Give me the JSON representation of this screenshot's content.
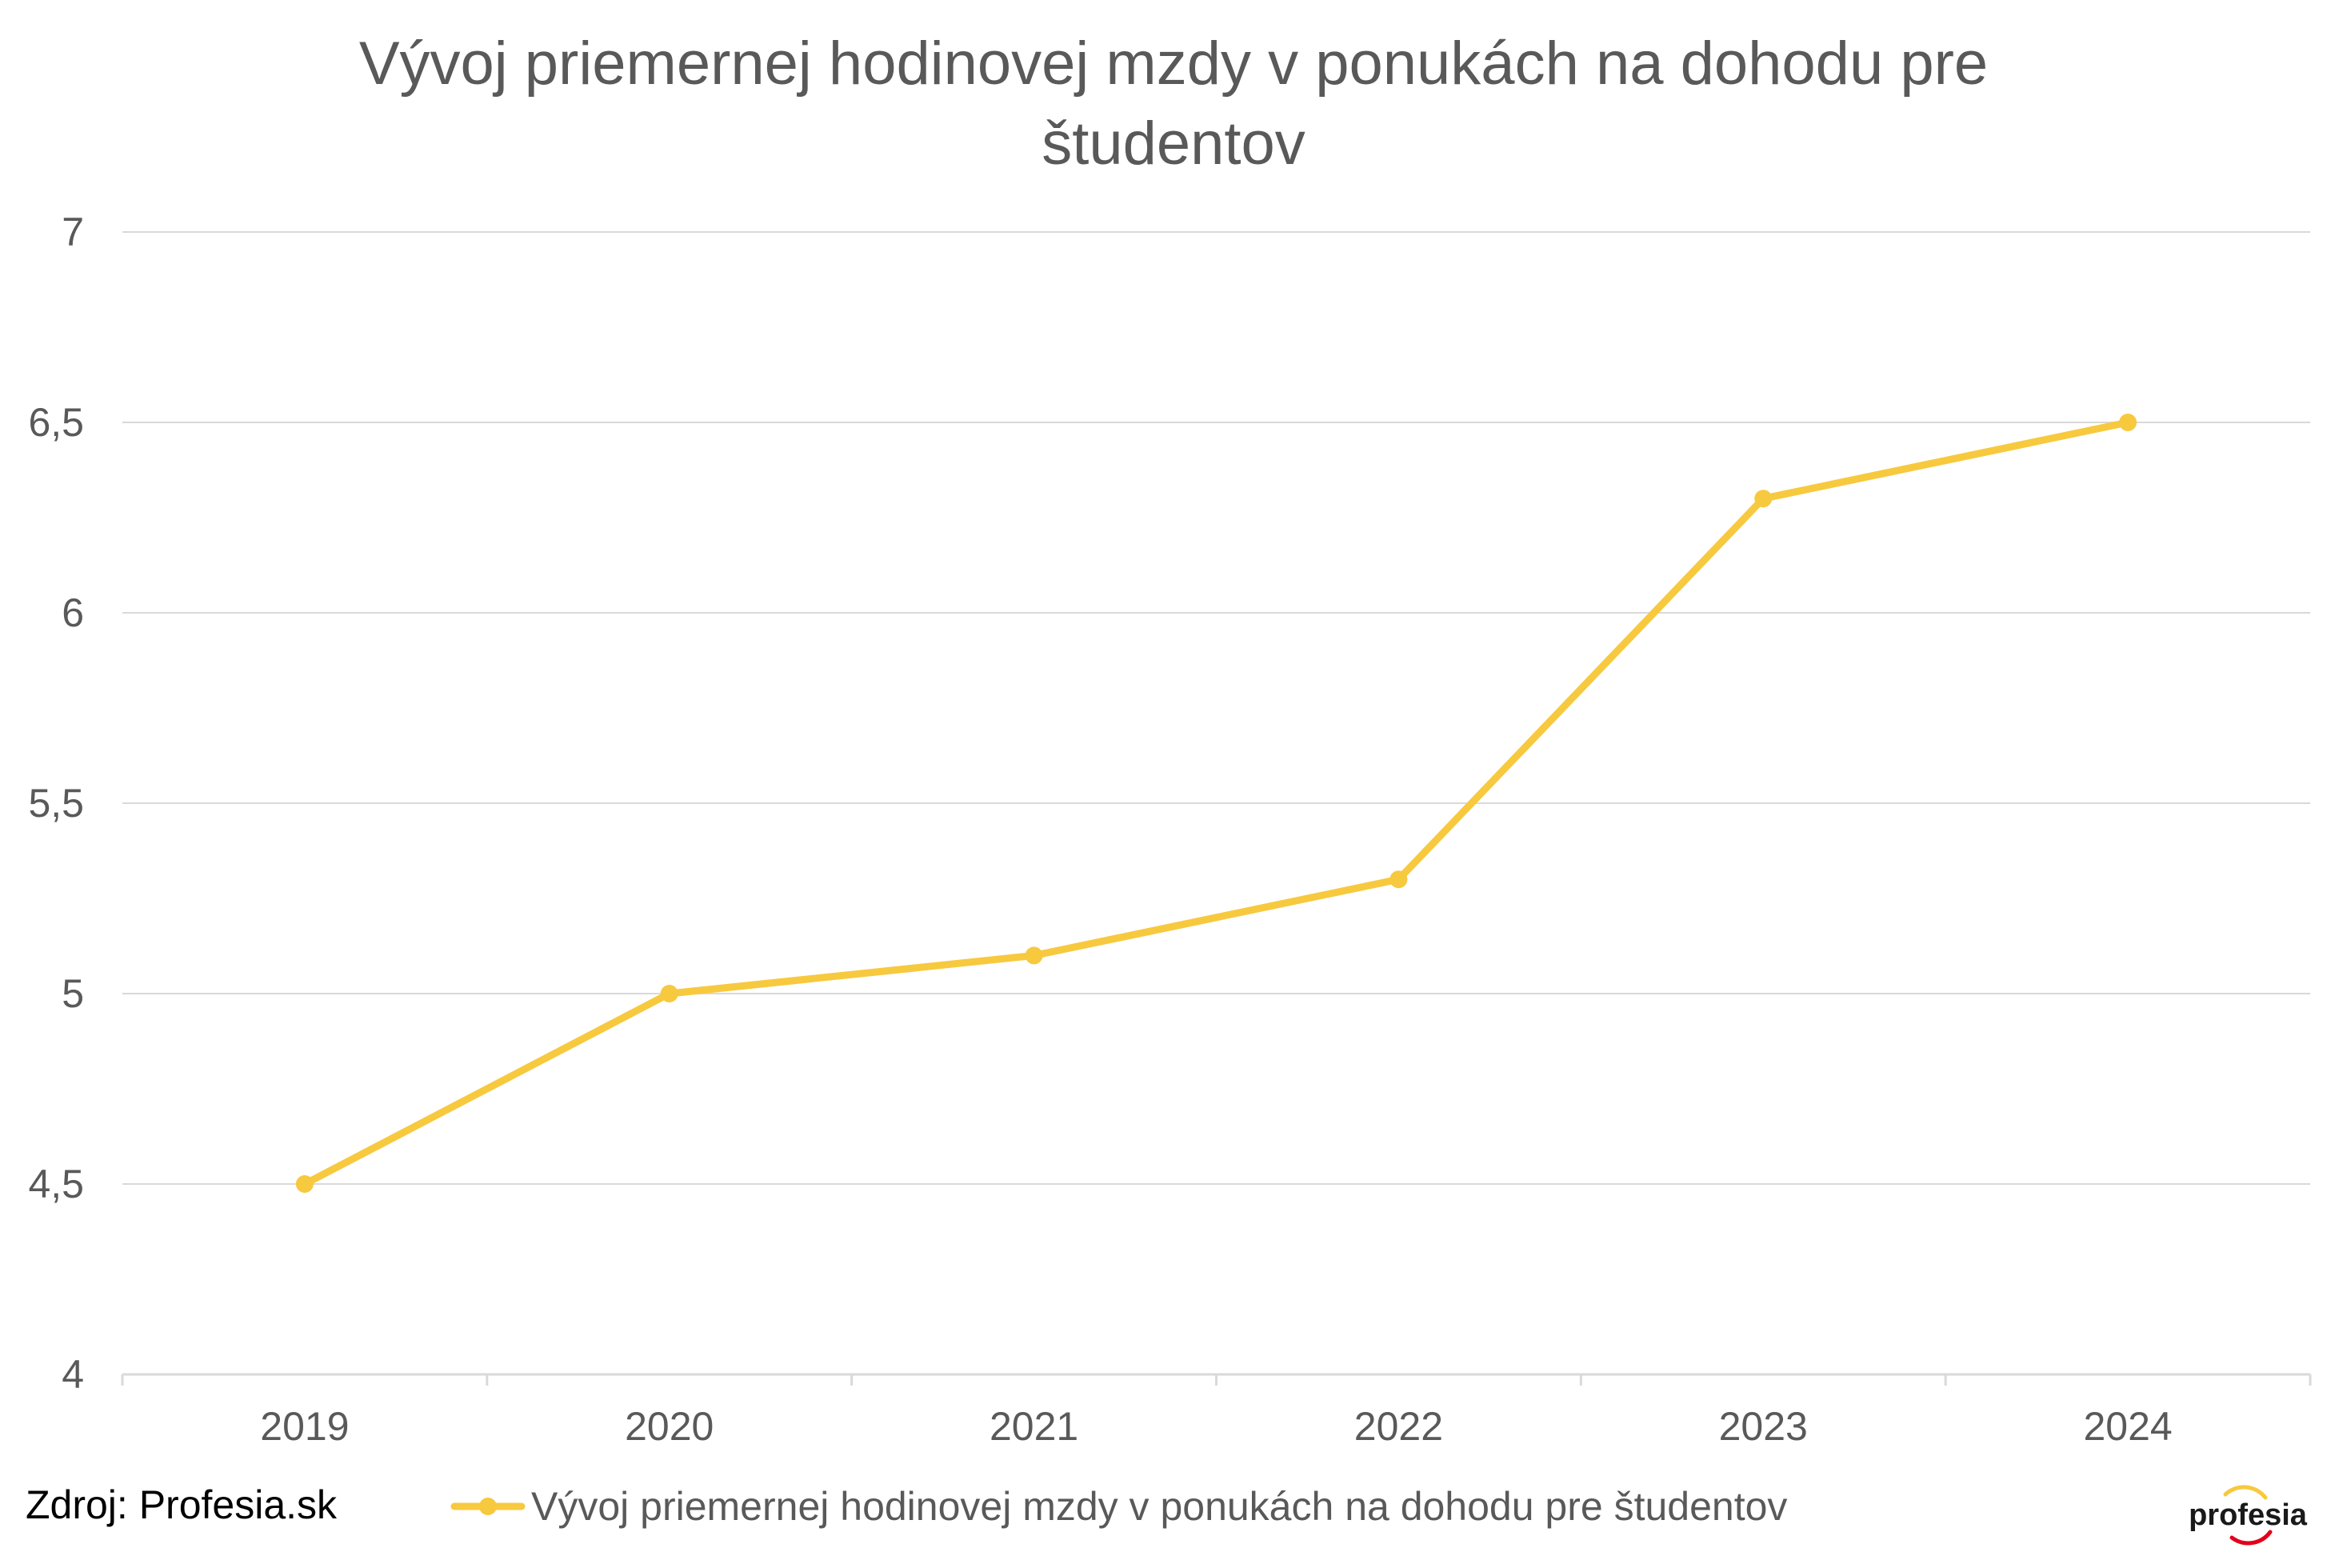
{
  "chart_data": {
    "type": "line",
    "title_lines": [
      "Vývoj priemernej hodinovej mzdy v ponukách na dohodu pre",
      "študentov"
    ],
    "xlabel": "",
    "ylabel": "",
    "categories": [
      "2019",
      "2020",
      "2021",
      "2022",
      "2023",
      "2024"
    ],
    "series": [
      {
        "name": "Vývoj priemernej hodinovej mzdy v ponukách na dohodu pre študentov",
        "values": [
          4.5,
          5.0,
          5.1,
          5.3,
          6.3,
          6.5
        ],
        "color": "#F7C93E"
      }
    ],
    "ylim": [
      4,
      7
    ],
    "yticks": [
      "4",
      "4,5",
      "5",
      "5,5",
      "6",
      "6,5",
      "7"
    ],
    "grid": true,
    "legend_position": "bottom"
  },
  "source": {
    "text": "Zdroj: Profesia.sk"
  },
  "logo": {
    "text": "profesia",
    "icon": "profesia-logo-icon",
    "colors": [
      "#F7C93E",
      "#E2001A"
    ]
  },
  "colors": {
    "grid": "#D9D9D9",
    "text": "#595959"
  }
}
